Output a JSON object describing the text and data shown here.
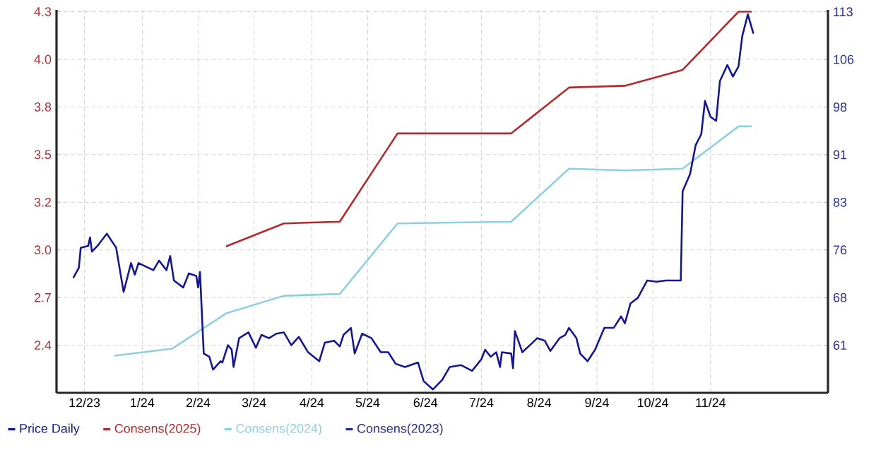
{
  "chart_data": {
    "type": "line",
    "xlim": [
      "2023-12-01",
      "2025-01-18"
    ],
    "xticks": [
      {
        "value": "2023-12-16",
        "label": "12/23"
      },
      {
        "value": "2024-01-16",
        "label": "1/24"
      },
      {
        "value": "2024-02-15",
        "label": "2/24"
      },
      {
        "value": "2024-03-16",
        "label": "3/24"
      },
      {
        "value": "2024-04-16",
        "label": "4/24"
      },
      {
        "value": "2024-05-16",
        "label": "5/24"
      },
      {
        "value": "2024-06-16",
        "label": "6/24"
      },
      {
        "value": "2024-07-16",
        "label": "7/24"
      },
      {
        "value": "2024-08-16",
        "label": "8/24"
      },
      {
        "value": "2024-09-16",
        "label": "9/24"
      },
      {
        "value": "2024-10-16",
        "label": "10/24"
      },
      {
        "value": "2024-11-16",
        "label": "11/24"
      }
    ],
    "ylim": [
      2.15,
      4.32
    ],
    "yticks": [
      {
        "value": 2.42,
        "label": "2.4"
      },
      {
        "value": 2.69,
        "label": "2.7"
      },
      {
        "value": 2.96,
        "label": "3.0"
      },
      {
        "value": 3.23,
        "label": "3.2"
      },
      {
        "value": 3.5,
        "label": "3.5"
      },
      {
        "value": 3.77,
        "label": "3.8"
      },
      {
        "value": 4.04,
        "label": "4.0"
      },
      {
        "value": 4.31,
        "label": "4.3"
      }
    ],
    "y2lim": [
      53.57,
      113.3
    ],
    "y2ticks": [
      61,
      {
        "value": 68.43,
        "label": "68"
      },
      {
        "value": 75.86,
        "label": "76"
      },
      {
        "value": 83.29,
        "label": "83"
      },
      {
        "value": 90.71,
        "label": "91"
      },
      {
        "value": 98.14,
        "label": "98"
      },
      {
        "value": 105.57,
        "label": "106"
      },
      113
    ],
    "grid": true,
    "legend": "bottom",
    "marker": "none",
    "line_style": "solid",
    "series": [
      {
        "name": "Price Daily",
        "color": "#16168e",
        "axis": "y2",
        "x": [
          "2023-12-10",
          "2023-12-13",
          "2023-12-14",
          "2023-12-18",
          "2023-12-19",
          "2023-12-20",
          "2023-12-23",
          "2023-12-28",
          "2024-01-02",
          "2024-01-06",
          "2024-01-10",
          "2024-01-12",
          "2024-01-14",
          "2024-01-22",
          "2024-01-25",
          "2024-01-29",
          "2024-01-31",
          "2024-02-02",
          "2024-02-07",
          "2024-02-10",
          "2024-02-14",
          "2024-02-15",
          "2024-02-16",
          "2024-02-18",
          "2024-02-21",
          "2024-02-23",
          "2024-02-27",
          "2024-02-28",
          "2024-03-02",
          "2024-03-04",
          "2024-03-05",
          "2024-03-08",
          "2024-03-13",
          "2024-03-17",
          "2024-03-20",
          "2024-03-24",
          "2024-03-28",
          "2024-04-01",
          "2024-04-05",
          "2024-04-09",
          "2024-04-14",
          "2024-04-20",
          "2024-04-23",
          "2024-04-28",
          "2024-05-01",
          "2024-05-03",
          "2024-05-07",
          "2024-05-09",
          "2024-05-13",
          "2024-05-18",
          "2024-05-23",
          "2024-05-27",
          "2024-05-31",
          "2024-06-05",
          "2024-06-12",
          "2024-06-15",
          "2024-06-20",
          "2024-06-25",
          "2024-06-29",
          "2024-07-05",
          "2024-07-11",
          "2024-07-16",
          "2024-07-18",
          "2024-07-21",
          "2024-07-24",
          "2024-07-26",
          "2024-07-27",
          "2024-08-01",
          "2024-08-02",
          "2024-08-03",
          "2024-08-07",
          "2024-08-11",
          "2024-08-15",
          "2024-08-19",
          "2024-08-22",
          "2024-08-27",
          "2024-08-30",
          "2024-09-01",
          "2024-09-05",
          "2024-09-07",
          "2024-09-11",
          "2024-09-15",
          "2024-09-20",
          "2024-09-25",
          "2024-09-29",
          "2024-10-01",
          "2024-10-04",
          "2024-10-08",
          "2024-10-13",
          "2024-10-18",
          "2024-10-23",
          "2024-10-28",
          "2024-10-31",
          "2024-11-01",
          "2024-11-05",
          "2024-11-08",
          "2024-11-11",
          "2024-11-13",
          "2024-11-16",
          "2024-11-19",
          "2024-11-21",
          "2024-11-25",
          "2024-11-28",
          "2024-12-01",
          "2024-12-03",
          "2024-12-06",
          "2024-12-09"
        ],
        "values": [
          71.5,
          73.1,
          76.2,
          76.5,
          77.8,
          75.6,
          76.5,
          78.4,
          76.2,
          69.3,
          73.8,
          72.0,
          73.8,
          72.7,
          74.2,
          72.7,
          74.9,
          71.1,
          70.0,
          72.2,
          71.8,
          70.0,
          72.4,
          59.7,
          59.2,
          57.2,
          58.5,
          58.3,
          61.0,
          60.3,
          57.6,
          62.1,
          63.0,
          60.6,
          62.6,
          62.1,
          62.8,
          63.0,
          61.0,
          62.3,
          59.9,
          58.5,
          61.4,
          61.7,
          60.8,
          62.6,
          63.7,
          59.7,
          62.8,
          62.1,
          59.9,
          59.9,
          58.1,
          57.6,
          58.3,
          55.4,
          54.1,
          55.6,
          57.6,
          57.9,
          57.0,
          58.8,
          60.3,
          59.2,
          59.9,
          57.6,
          59.9,
          59.7,
          57.4,
          63.2,
          59.9,
          61.0,
          62.1,
          61.7,
          60.1,
          62.1,
          62.6,
          63.7,
          62.1,
          59.7,
          58.5,
          60.3,
          63.7,
          63.7,
          65.5,
          64.4,
          67.5,
          68.4,
          71.1,
          70.9,
          71.1,
          71.1,
          71.1,
          85.0,
          87.7,
          92.2,
          93.9,
          99.1,
          96.6,
          96.0,
          102.2,
          104.7,
          102.9,
          104.5,
          109.2,
          112.6,
          109.6
        ]
      },
      {
        "name": "Consens(2025)",
        "color": "#b02a2e",
        "x": [
          "2024-03-01",
          "2024-04-01",
          "2024-05-01",
          "2024-06-01",
          "2024-08-01",
          "2024-09-01",
          "2024-10-01",
          "2024-11-01",
          "2024-12-01",
          "2024-12-08"
        ],
        "values": [
          2.98,
          3.11,
          3.12,
          3.62,
          3.62,
          3.88,
          3.89,
          3.98,
          4.31,
          4.31
        ]
      },
      {
        "name": "Consens(2024)",
        "color": "#8ed0de",
        "x": [
          "2024-01-01",
          "2024-02-01",
          "2024-03-01",
          "2024-04-01",
          "2024-05-01",
          "2024-06-01",
          "2024-08-01",
          "2024-09-01",
          "2024-10-01",
          "2024-11-01",
          "2024-12-01",
          "2024-12-08"
        ],
        "values": [
          2.36,
          2.4,
          2.6,
          2.7,
          2.71,
          3.11,
          3.12,
          3.42,
          3.41,
          3.42,
          3.66,
          3.66
        ]
      },
      {
        "name": "Consens(2023)",
        "color": "#2c2c8a"
      }
    ]
  }
}
